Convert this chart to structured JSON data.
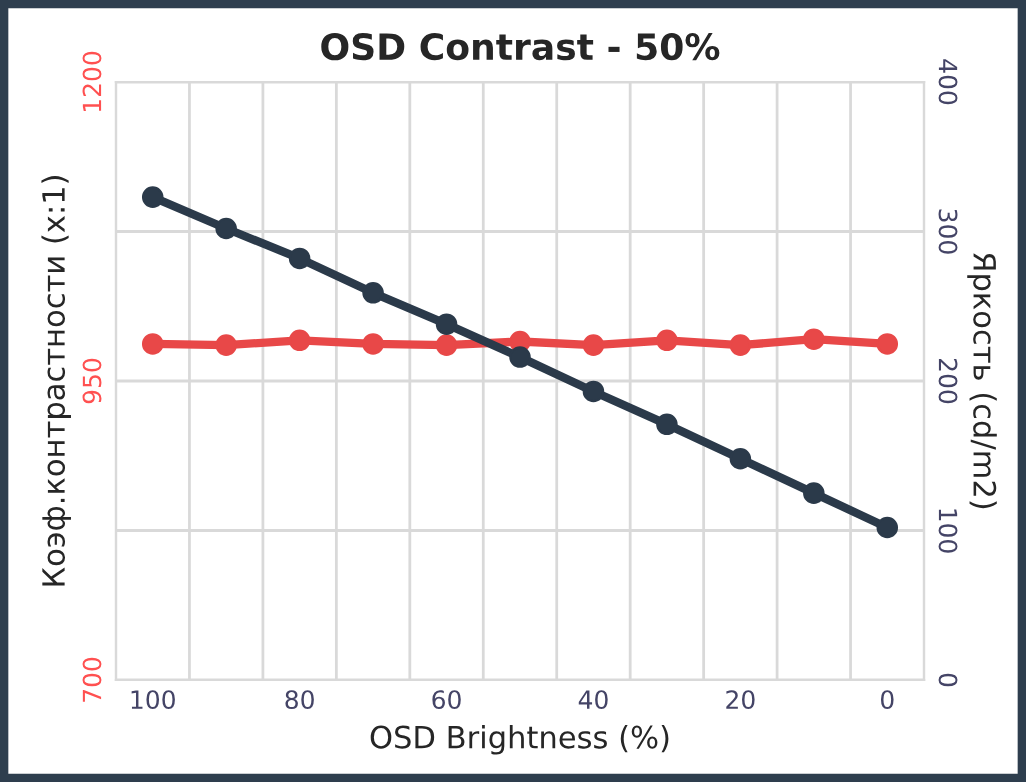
{
  "chart_data": {
    "type": "line",
    "title": "OSD Contrast - 50%",
    "xlabel": "OSD Brightness (%)",
    "ylabel": "Коэф.контрастности (x:1)",
    "y2label": "Яркость (cd/m2)",
    "categories": [
      "100",
      null,
      "80",
      null,
      "60",
      null,
      "40",
      null,
      "20",
      null,
      "0"
    ],
    "series": [
      {
        "color": "#e84848",
        "values": [
          981,
          980,
          984,
          981,
          980,
          983,
          980,
          984,
          980,
          985,
          981
        ]
      },
      {
        "color": "#2b3a4a",
        "axis": "y2",
        "values": [
          323,
          302,
          282,
          259,
          238,
          216,
          193,
          171,
          148,
          125,
          102
        ]
      }
    ],
    "ylim": [
      700,
      1200
    ],
    "yticks": [
      700,
      {
        "value": 825,
        "label": null
      },
      950,
      {
        "value": 1075,
        "label": null
      },
      1200
    ],
    "y2lim": [
      0,
      400
    ],
    "y2ticks": [
      0,
      100,
      200,
      300,
      400
    ],
    "grid": true,
    "marker": "circle",
    "line_style": "solid",
    "legend": false
  }
}
